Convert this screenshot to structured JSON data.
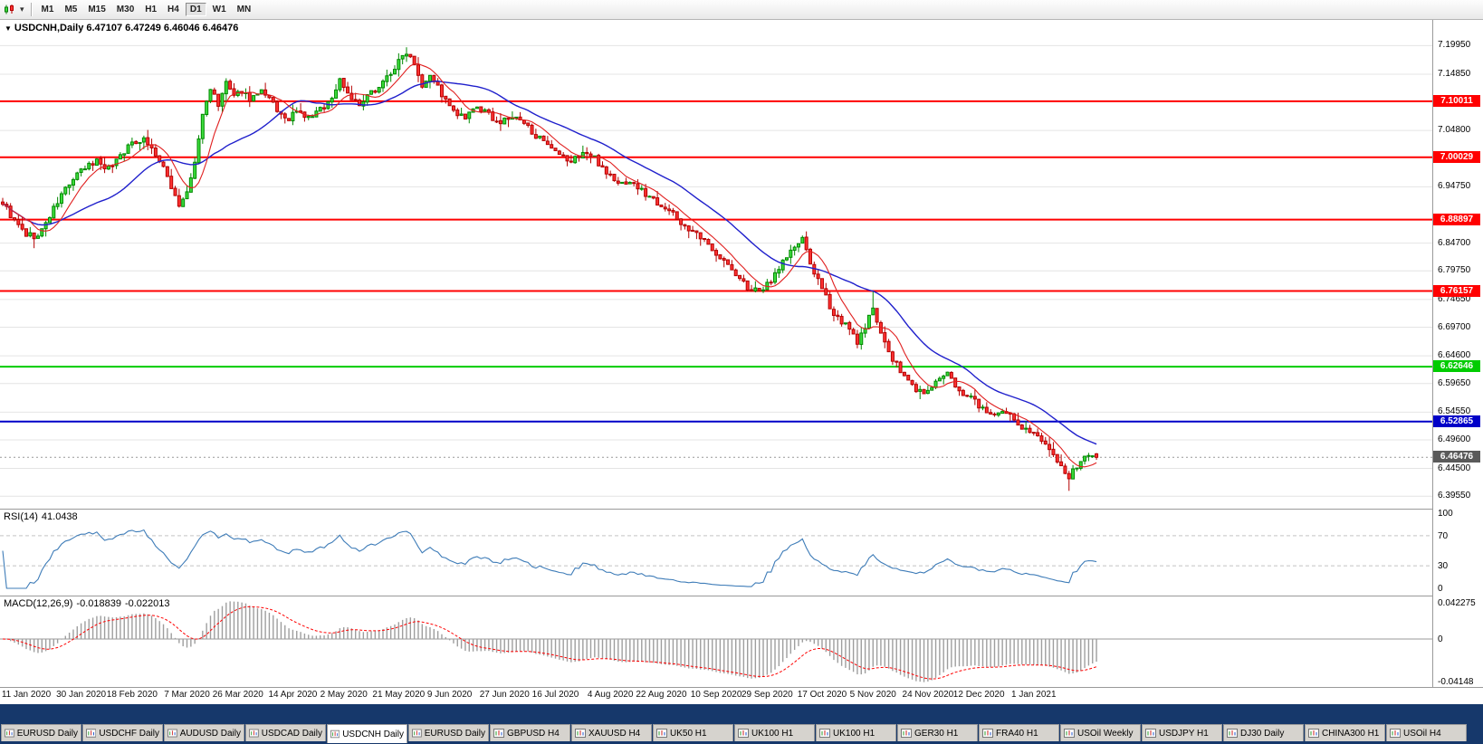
{
  "toolbar": {
    "chart_type_icon": "candlestick-chart-icon",
    "dropdown_caret": "▾",
    "timeframes": [
      {
        "label": "M1",
        "active": false
      },
      {
        "label": "M5",
        "active": false
      },
      {
        "label": "M15",
        "active": false
      },
      {
        "label": "M30",
        "active": false
      },
      {
        "label": "H1",
        "active": false
      },
      {
        "label": "H4",
        "active": false
      },
      {
        "label": "D1",
        "active": true
      },
      {
        "label": "W1",
        "active": false
      },
      {
        "label": "MN",
        "active": false
      }
    ]
  },
  "chart": {
    "collapse_icon": "▼",
    "symbol_label": "USDCNH,Daily",
    "ohlc": {
      "open": "6.47107",
      "high": "6.47249",
      "low": "6.46046",
      "close": "6.46476"
    }
  },
  "indicators": {
    "rsi": {
      "label": "RSI(14)",
      "value": "41.0438",
      "axis_labels": [
        "100",
        "70",
        "30",
        "0"
      ],
      "levels": [
        70,
        30
      ]
    },
    "macd": {
      "label": "MACD(12,26,9)",
      "value_main": "-0.018839",
      "value_signal": "-0.022013",
      "axis_top": "0.042275",
      "axis_zero": "0",
      "axis_bottom": "-0.04148"
    }
  },
  "price_axis": {
    "labels": [
      "7.19950",
      "7.14850",
      "7.04800",
      "6.94750",
      "6.84700",
      "6.79750",
      "6.74650",
      "6.69700",
      "6.64600",
      "6.59650",
      "6.54550",
      "6.49600",
      "6.44500",
      "6.39550"
    ]
  },
  "levels": [
    {
      "price": 7.10011,
      "label": "7.10011",
      "color": "#FF0000"
    },
    {
      "price": 7.00029,
      "label": "7.00029",
      "color": "#FF0000"
    },
    {
      "price": 6.88897,
      "label": "6.88897",
      "color": "#FF0000"
    },
    {
      "price": 6.76157,
      "label": "6.76157",
      "color": "#FF0000"
    },
    {
      "price": 6.62646,
      "label": "6.62646",
      "color": "#00CC00"
    },
    {
      "price": 6.52865,
      "label": "6.52865",
      "color": "#0000C8"
    }
  ],
  "current_price": {
    "value": 6.46476,
    "label": "6.46476",
    "color": "#5A5A5A"
  },
  "time_axis": {
    "labels": [
      {
        "text": "11 Jan 2020",
        "i": 6
      },
      {
        "text": "30 Jan 2020",
        "i": 20
      },
      {
        "text": "18 Feb 2020",
        "i": 33
      },
      {
        "text": "7 Mar 2020",
        "i": 47
      },
      {
        "text": "26 Mar 2020",
        "i": 60
      },
      {
        "text": "14 Apr 2020",
        "i": 74
      },
      {
        "text": "2 May 2020",
        "i": 87
      },
      {
        "text": "21 May 2020",
        "i": 101
      },
      {
        "text": "9 Jun 2020",
        "i": 114
      },
      {
        "text": "27 Jun 2020",
        "i": 128
      },
      {
        "text": "16 Jul 2020",
        "i": 141
      },
      {
        "text": "4 Aug 2020",
        "i": 155
      },
      {
        "text": "22 Aug 2020",
        "i": 168
      },
      {
        "text": "10 Sep 2020",
        "i": 182
      },
      {
        "text": "29 Sep 2020",
        "i": 195
      },
      {
        "text": "17 Oct 2020",
        "i": 209
      },
      {
        "text": "5 Nov 2020",
        "i": 222
      },
      {
        "text": "24 Nov 2020",
        "i": 236
      },
      {
        "text": "12 Dec 2020",
        "i": 249
      },
      {
        "text": "1 Jan 2021",
        "i": 263
      }
    ]
  },
  "tabs": [
    {
      "label": "EURUSD Daily",
      "active": false
    },
    {
      "label": "USDCHF Daily",
      "active": false
    },
    {
      "label": "AUDUSD Daily",
      "active": false
    },
    {
      "label": "USDCAD Daily",
      "active": false
    },
    {
      "label": "USDCNH Daily",
      "active": true
    },
    {
      "label": "EURUSD Daily",
      "active": false
    },
    {
      "label": "GBPUSD H4",
      "active": false
    },
    {
      "label": "XAUUSD H4",
      "active": false
    },
    {
      "label": "UK50 H1",
      "active": false
    },
    {
      "label": "UK100 H1",
      "active": false
    },
    {
      "label": "UK100 H1",
      "active": false
    },
    {
      "label": "GER30 H1",
      "active": false
    },
    {
      "label": "FRA40 H1",
      "active": false
    },
    {
      "label": "USOil Weekly",
      "active": false
    },
    {
      "label": "USDJPY H1",
      "active": false
    },
    {
      "label": "DJ30 Daily",
      "active": false
    },
    {
      "label": "CHINA300 H1",
      "active": false
    },
    {
      "label": "USOil H4",
      "active": false
    }
  ],
  "colors": {
    "up_fill": "#3CDC3C",
    "up_stroke": "#008800",
    "down_fill": "#FF3232",
    "down_stroke": "#B40000",
    "ma_fast": "#E02020",
    "ma_slow": "#2020CC",
    "rsi_line": "#3E7CB8",
    "rsi_level": "#C4C4C4",
    "macd_hist": "#9E9E9E",
    "macd_signal": "#FF0000",
    "grid": "#E4E4E4",
    "tab_bar_bg": "#16386B",
    "tab_bg": "#D6D3CE",
    "tab_active_bg": "#FFFFFF"
  },
  "chart_data": {
    "type": "candlestick",
    "symbol": "USDCNH",
    "timeframe": "Daily",
    "bars": 280,
    "visible_price_range": [
      6.3732,
      7.2453
    ],
    "last_ohlc": {
      "open": 6.47107,
      "high": 6.47249,
      "low": 6.46046,
      "close": 6.46476
    },
    "ma_fast_period": 8,
    "ma_slow_period": 26,
    "rsi_period": 14,
    "macd_params": [
      12,
      26,
      9
    ],
    "price_path": [
      [
        0,
        6.92
      ],
      [
        3,
        6.885
      ],
      [
        6,
        6.862
      ],
      [
        9,
        6.858
      ],
      [
        12,
        6.895
      ],
      [
        16,
        6.945
      ],
      [
        20,
        6.975
      ],
      [
        24,
        6.995
      ],
      [
        27,
        6.98
      ],
      [
        30,
        7.005
      ],
      [
        33,
        7.025
      ],
      [
        36,
        7.035
      ],
      [
        39,
        7.005
      ],
      [
        42,
        6.965
      ],
      [
        45,
        6.915
      ],
      [
        47,
        6.935
      ],
      [
        49,
        6.99
      ],
      [
        51,
        7.075
      ],
      [
        53,
        7.125
      ],
      [
        55,
        7.09
      ],
      [
        57,
        7.135
      ],
      [
        59,
        7.105
      ],
      [
        61,
        7.12
      ],
      [
        63,
        7.105
      ],
      [
        66,
        7.115
      ],
      [
        69,
        7.095
      ],
      [
        72,
        7.065
      ],
      [
        75,
        7.08
      ],
      [
        78,
        7.07
      ],
      [
        81,
        7.085
      ],
      [
        84,
        7.105
      ],
      [
        86,
        7.14
      ],
      [
        88,
        7.115
      ],
      [
        91,
        7.09
      ],
      [
        94,
        7.115
      ],
      [
        97,
        7.135
      ],
      [
        100,
        7.16
      ],
      [
        103,
        7.19
      ],
      [
        105,
        7.17
      ],
      [
        107,
        7.13
      ],
      [
        109,
        7.15
      ],
      [
        111,
        7.125
      ],
      [
        113,
        7.1
      ],
      [
        115,
        7.08
      ],
      [
        118,
        7.068
      ],
      [
        121,
        7.09
      ],
      [
        124,
        7.075
      ],
      [
        127,
        7.062
      ],
      [
        130,
        7.072
      ],
      [
        133,
        7.06
      ],
      [
        136,
        7.04
      ],
      [
        139,
        7.018
      ],
      [
        142,
        7.002
      ],
      [
        145,
        6.992
      ],
      [
        148,
        7.01
      ],
      [
        151,
        6.998
      ],
      [
        154,
        6.975
      ],
      [
        157,
        6.952
      ],
      [
        160,
        6.958
      ],
      [
        163,
        6.94
      ],
      [
        166,
        6.925
      ],
      [
        169,
        6.912
      ],
      [
        172,
        6.89
      ],
      [
        175,
        6.872
      ],
      [
        178,
        6.855
      ],
      [
        181,
        6.838
      ],
      [
        184,
        6.815
      ],
      [
        187,
        6.79
      ],
      [
        190,
        6.768
      ],
      [
        193,
        6.758
      ],
      [
        196,
        6.782
      ],
      [
        199,
        6.815
      ],
      [
        202,
        6.84
      ],
      [
        204,
        6.852
      ],
      [
        206,
        6.812
      ],
      [
        209,
        6.762
      ],
      [
        212,
        6.722
      ],
      [
        215,
        6.7
      ],
      [
        218,
        6.672
      ],
      [
        220,
        6.692
      ],
      [
        222,
        6.735
      ],
      [
        224,
        6.688
      ],
      [
        226,
        6.65
      ],
      [
        229,
        6.618
      ],
      [
        232,
        6.592
      ],
      [
        235,
        6.578
      ],
      [
        238,
        6.598
      ],
      [
        241,
        6.612
      ],
      [
        244,
        6.585
      ],
      [
        247,
        6.572
      ],
      [
        250,
        6.552
      ],
      [
        253,
        6.535
      ],
      [
        256,
        6.545
      ],
      [
        259,
        6.525
      ],
      [
        262,
        6.512
      ],
      [
        265,
        6.492
      ],
      [
        268,
        6.472
      ],
      [
        270,
        6.448
      ],
      [
        272,
        6.428
      ],
      [
        274,
        6.45
      ],
      [
        276,
        6.468
      ],
      [
        278,
        6.472
      ],
      [
        279,
        6.46476
      ]
    ],
    "key_extremes": [
      {
        "i": 8,
        "low": 6.838
      },
      {
        "i": 103,
        "high": 7.1965
      },
      {
        "i": 222,
        "high": 6.761
      },
      {
        "i": 272,
        "low": 6.405
      }
    ]
  }
}
